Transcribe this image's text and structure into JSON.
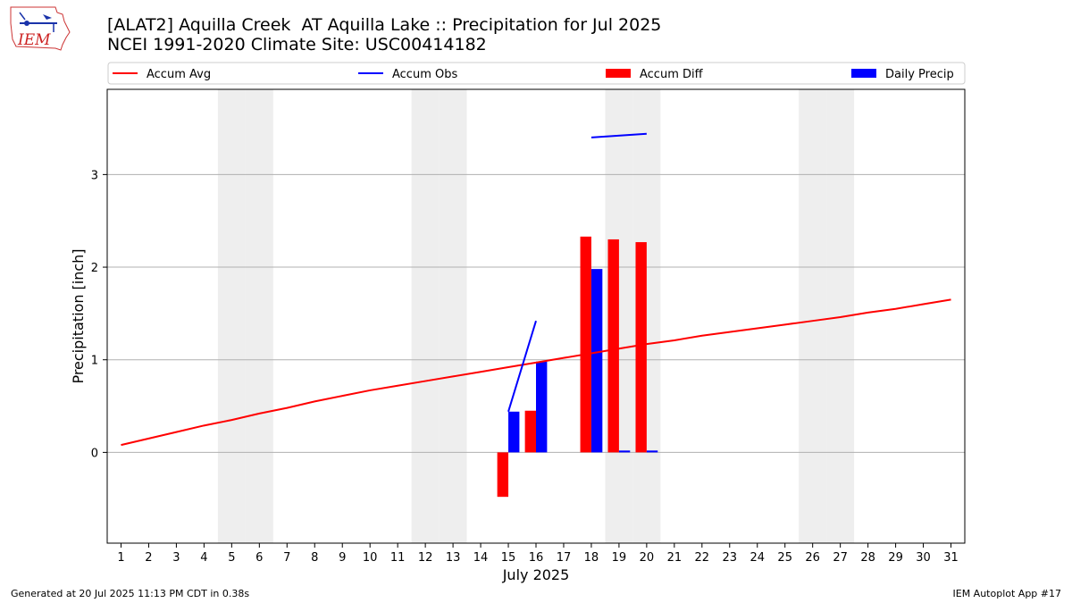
{
  "header": {
    "title_line1": "[ALAT2] Aquilla Creek  AT Aquilla Lake :: Precipitation for Jul 2025",
    "title_line2": "NCEI 1991-2020 Climate Site: USC00414182",
    "logo_text": "IEM"
  },
  "footer": {
    "generated": "Generated at 20 Jul 2025 11:13 PM CDT in 0.38s",
    "app": "IEM Autoplot App #17"
  },
  "colors": {
    "accum_avg": "#ff0000",
    "accum_obs": "#0000ff",
    "accum_diff": "#ff0000",
    "daily_precip": "#0000ff",
    "weekend_shade": "#eeeeee",
    "grid": "#b0b0b0"
  },
  "chart_data": {
    "type": "bar",
    "xlabel": "July 2025",
    "ylabel": "Precipitation [inch]",
    "xlim": [
      0.5,
      31.5
    ],
    "ylim": [
      -0.98,
      3.92
    ],
    "x_ticks": [
      1,
      2,
      3,
      4,
      5,
      6,
      7,
      8,
      9,
      10,
      11,
      12,
      13,
      14,
      15,
      16,
      17,
      18,
      19,
      20,
      21,
      22,
      23,
      24,
      25,
      26,
      27,
      28,
      29,
      30,
      31
    ],
    "y_ticks": [
      0,
      1,
      2,
      3
    ],
    "grid": "y",
    "legend_position": "top",
    "legend": [
      "Accum Avg",
      "Accum Obs",
      "Accum Diff",
      "Daily Precip"
    ],
    "weekend_days": [
      5,
      6,
      12,
      13,
      19,
      20,
      26,
      27
    ],
    "series": [
      {
        "name": "Accum Avg",
        "type": "line",
        "x": [
          1,
          2,
          3,
          4,
          5,
          6,
          7,
          8,
          9,
          10,
          11,
          12,
          13,
          14,
          15,
          16,
          17,
          18,
          19,
          20,
          21,
          22,
          23,
          24,
          25,
          26,
          27,
          28,
          29,
          30,
          31
        ],
        "values": [
          0.08,
          0.15,
          0.22,
          0.29,
          0.35,
          0.42,
          0.48,
          0.55,
          0.61,
          0.67,
          0.72,
          0.77,
          0.82,
          0.87,
          0.92,
          0.97,
          1.02,
          1.07,
          1.12,
          1.17,
          1.21,
          1.26,
          1.3,
          1.34,
          1.38,
          1.42,
          1.46,
          1.51,
          1.55,
          1.6,
          1.65
        ]
      },
      {
        "name": "Accum Obs",
        "type": "line",
        "segments": [
          {
            "x": [
              15,
              16
            ],
            "values": [
              0.44,
              1.42
            ]
          },
          {
            "x": [
              18,
              20
            ],
            "values": [
              3.4,
              3.44
            ]
          }
        ]
      },
      {
        "name": "Accum Diff",
        "type": "bar",
        "x": [
          15,
          16,
          18,
          19,
          20
        ],
        "values": [
          -0.48,
          0.45,
          2.33,
          2.3,
          2.27
        ]
      },
      {
        "name": "Daily Precip",
        "type": "bar",
        "x": [
          15,
          16,
          18,
          19,
          20
        ],
        "values": [
          0.44,
          0.98,
          1.98,
          0.02,
          0.02
        ]
      }
    ]
  }
}
